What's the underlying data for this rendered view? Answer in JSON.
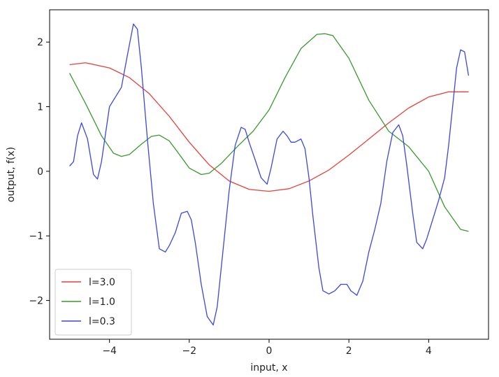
{
  "chart_data": {
    "type": "line",
    "xlabel": "input, x",
    "ylabel": "output, f(x)",
    "xlim": [
      -5.5,
      5.5
    ],
    "ylim": [
      -2.6,
      2.5
    ],
    "xticks": [
      -4,
      -2,
      0,
      2,
      4
    ],
    "yticks": [
      -2,
      -1,
      0,
      1,
      2
    ],
    "xtick_labels": [
      "−4",
      "−2",
      "0",
      "2",
      "4"
    ],
    "ytick_labels": [
      "−2",
      "−1",
      "0",
      "1",
      "2"
    ],
    "grid": false,
    "legend_position": "lower-left",
    "series": [
      {
        "name": "l=3.0",
        "color": "#e8413b",
        "x": [
          -5.0,
          -4.6,
          -4.0,
          -3.5,
          -3.0,
          -2.5,
          -2.0,
          -1.5,
          -1.0,
          -0.5,
          0.0,
          0.5,
          1.0,
          1.5,
          2.0,
          2.5,
          3.0,
          3.5,
          4.0,
          4.5,
          5.0
        ],
        "y": [
          1.65,
          1.68,
          1.6,
          1.45,
          1.2,
          0.85,
          0.45,
          0.1,
          -0.15,
          -0.28,
          -0.31,
          -0.27,
          -0.15,
          0.02,
          0.25,
          0.5,
          0.75,
          0.98,
          1.15,
          1.23,
          1.23
        ]
      },
      {
        "name": "l=1.0",
        "color": "#3a9a2f",
        "x": [
          -5.0,
          -4.6,
          -4.2,
          -3.9,
          -3.7,
          -3.5,
          -3.2,
          -2.95,
          -2.75,
          -2.5,
          -2.2,
          -2.0,
          -1.7,
          -1.5,
          -1.2,
          -0.8,
          -0.4,
          0.0,
          0.4,
          0.8,
          1.2,
          1.4,
          1.6,
          2.0,
          2.5,
          3.0,
          3.5,
          4.0,
          4.4,
          4.8,
          5.0
        ],
        "y": [
          1.52,
          1.05,
          0.55,
          0.28,
          0.23,
          0.26,
          0.42,
          0.54,
          0.56,
          0.47,
          0.22,
          0.05,
          -0.05,
          -0.03,
          0.12,
          0.38,
          0.62,
          0.95,
          1.45,
          1.9,
          2.12,
          2.13,
          2.1,
          1.75,
          1.1,
          0.62,
          0.38,
          0.0,
          -0.55,
          -0.9,
          -0.93
        ]
      },
      {
        "name": "l=0.3",
        "color": "#3c46e6",
        "x": [
          -5.0,
          -4.9,
          -4.8,
          -4.7,
          -4.55,
          -4.4,
          -4.3,
          -4.2,
          -4.0,
          -3.85,
          -3.7,
          -3.55,
          -3.4,
          -3.3,
          -3.2,
          -3.05,
          -2.9,
          -2.75,
          -2.6,
          -2.5,
          -2.35,
          -2.2,
          -2.05,
          -1.95,
          -1.85,
          -1.7,
          -1.55,
          -1.4,
          -1.3,
          -1.15,
          -1.0,
          -0.85,
          -0.7,
          -0.6,
          -0.5,
          -0.35,
          -0.2,
          -0.05,
          0.05,
          0.2,
          0.35,
          0.45,
          0.55,
          0.65,
          0.8,
          0.9,
          1.0,
          1.1,
          1.25,
          1.35,
          1.5,
          1.65,
          1.8,
          1.95,
          2.05,
          2.2,
          2.35,
          2.5,
          2.65,
          2.8,
          2.95,
          3.1,
          3.25,
          3.35,
          3.45,
          3.6,
          3.7,
          3.85,
          3.95,
          4.1,
          4.25,
          4.4,
          4.5,
          4.6,
          4.7,
          4.8,
          4.9,
          5.0
        ],
        "y": [
          0.08,
          0.15,
          0.55,
          0.75,
          0.5,
          -0.05,
          -0.12,
          0.15,
          1.0,
          1.15,
          1.3,
          1.8,
          2.28,
          2.2,
          1.6,
          0.5,
          -0.5,
          -1.2,
          -1.25,
          -1.15,
          -0.95,
          -0.65,
          -0.62,
          -0.75,
          -1.1,
          -1.75,
          -2.25,
          -2.38,
          -2.1,
          -1.2,
          -0.3,
          0.4,
          0.68,
          0.65,
          0.45,
          0.18,
          -0.1,
          -0.2,
          0.05,
          0.5,
          0.62,
          0.55,
          0.45,
          0.45,
          0.5,
          0.35,
          -0.1,
          -0.7,
          -1.5,
          -1.85,
          -1.9,
          -1.85,
          -1.75,
          -1.75,
          -1.85,
          -1.92,
          -1.7,
          -1.25,
          -0.9,
          -0.5,
          0.15,
          0.6,
          0.72,
          0.55,
          0.1,
          -0.65,
          -1.1,
          -1.2,
          -1.05,
          -0.75,
          -0.45,
          -0.1,
          0.4,
          1.0,
          1.6,
          1.88,
          1.85,
          1.48
        ]
      }
    ]
  }
}
